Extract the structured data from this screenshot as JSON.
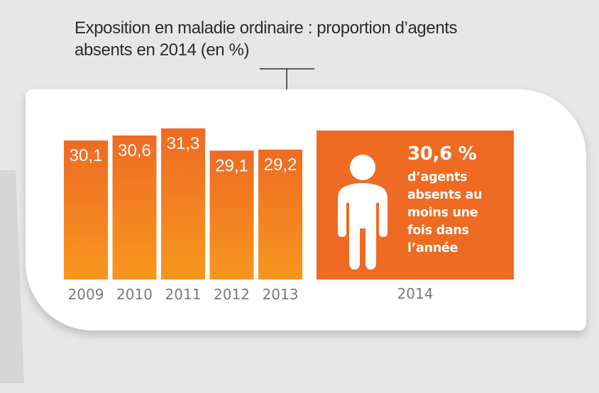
{
  "chart_data": {
    "type": "bar",
    "title": "Exposition en maladie ordinaire : proportion d’agents absents en 2014 (en %)",
    "title_lines": [
      "Exposition en maladie ordinaire : proportion d’agents",
      "absents en 2014 (en %)"
    ],
    "categories": [
      "2009",
      "2010",
      "2011",
      "2012",
      "2013"
    ],
    "values": [
      30.1,
      30.6,
      31.3,
      29.1,
      29.2
    ],
    "value_labels": [
      "30,1",
      "30,6",
      "31,3",
      "29,1",
      "29,2"
    ],
    "unit": "%",
    "colors": {
      "bar_top": "#ef6b23",
      "bar_bottom": "#f7971f",
      "panel": "#ef6b23"
    }
  },
  "highlight": {
    "year": "2014",
    "value": 30.6,
    "value_text": "30,6 %",
    "description_lines": [
      "d’agents",
      "absents au",
      "moins une",
      "fois dans",
      "l’année"
    ],
    "icon": "person-icon"
  }
}
